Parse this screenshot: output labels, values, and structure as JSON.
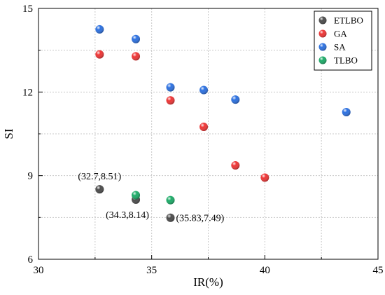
{
  "chart_data": {
    "type": "scatter",
    "xlabel": "IR(%)",
    "ylabel": "SI",
    "xlim": [
      30,
      45
    ],
    "ylim": [
      6,
      15
    ],
    "xticks": [
      30,
      35,
      40,
      45
    ],
    "yticks": [
      6,
      9,
      12,
      15
    ],
    "grid": true,
    "legend_position": "top-right",
    "series": [
      {
        "name": "ETLBO",
        "color": "#4a4a4a",
        "points": [
          [
            32.7,
            8.51
          ],
          [
            34.3,
            8.14
          ],
          [
            35.83,
            7.49
          ]
        ]
      },
      {
        "name": "GA",
        "color": "#ee3333",
        "points": [
          [
            32.7,
            13.35
          ],
          [
            34.3,
            13.28
          ],
          [
            35.83,
            11.7
          ],
          [
            37.3,
            10.75
          ],
          [
            38.7,
            9.37
          ],
          [
            40.0,
            8.93
          ]
        ]
      },
      {
        "name": "SA",
        "color": "#2a6fe0",
        "points": [
          [
            32.7,
            14.25
          ],
          [
            34.3,
            13.9
          ],
          [
            35.83,
            12.17
          ],
          [
            37.3,
            12.07
          ],
          [
            38.7,
            11.73
          ],
          [
            43.6,
            11.28
          ]
        ]
      },
      {
        "name": "TLBO",
        "color": "#1aaa66",
        "points": [
          [
            34.3,
            8.3
          ],
          [
            35.83,
            8.12
          ]
        ]
      }
    ],
    "annotations": [
      {
        "text": "(32.7,8.51)",
        "x": 32.7,
        "y": 8.51,
        "position": "above"
      },
      {
        "text": "(34.3,8.14)",
        "x": 34.3,
        "y": 8.14,
        "position": "below"
      },
      {
        "text": "(35.83,7.49)",
        "x": 35.83,
        "y": 7.49,
        "position": "right"
      }
    ]
  }
}
